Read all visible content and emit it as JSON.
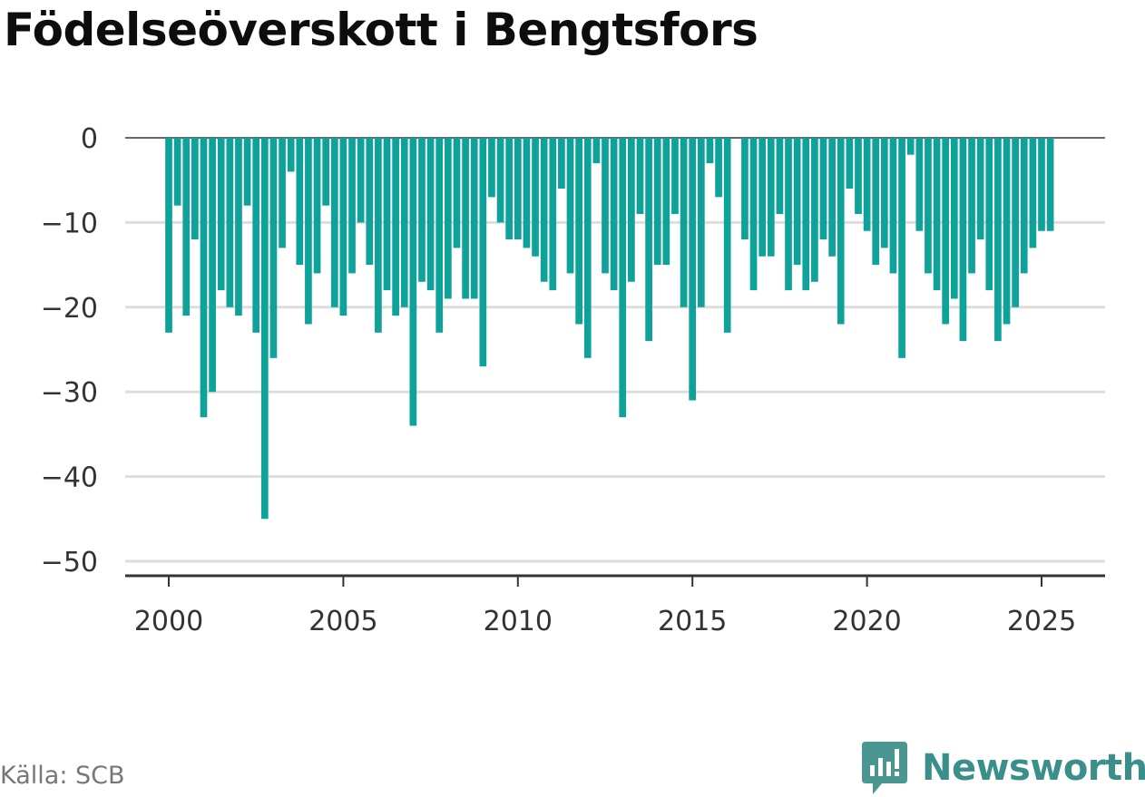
{
  "title": "Födelseöverskott i Bengtsfors",
  "source": "Källa: SCB",
  "brand": {
    "name": "Newsworthy",
    "logo_icon": "newsworthy-logo-icon"
  },
  "colors": {
    "bar": "#0fa29a",
    "brand": "#3b8f8a",
    "grid": "#dddddd",
    "axis": "#333333"
  },
  "chart_data": {
    "type": "bar",
    "title": "Födelseöverskott i Bengtsfors",
    "xlabel": "",
    "ylabel": "",
    "frequency": "quarterly",
    "start": "2000-Q1",
    "x_ticks": [
      "2000",
      "2005",
      "2010",
      "2015",
      "2020",
      "2025"
    ],
    "y_ticks": [
      0,
      -10,
      -20,
      -30,
      -40,
      -50
    ],
    "ylim": [
      -50,
      0
    ],
    "grid": true,
    "legend": "none",
    "values": [
      -23,
      -8,
      -21,
      -12,
      -33,
      -30,
      -18,
      -20,
      -21,
      -8,
      -23,
      -45,
      -26,
      -13,
      -4,
      -15,
      -22,
      -16,
      -8,
      -20,
      -21,
      -16,
      -10,
      -15,
      -23,
      -18,
      -21,
      -20,
      -34,
      -17,
      -18,
      -23,
      -19,
      -13,
      -19,
      -19,
      -27,
      -7,
      -10,
      -12,
      -12,
      -13,
      -14,
      -17,
      -18,
      -6,
      -16,
      -22,
      -26,
      -3,
      -16,
      -18,
      -33,
      -17,
      -9,
      -24,
      -15,
      -15,
      -9,
      -20,
      -31,
      -20,
      -3,
      -7,
      -23,
      0,
      -12,
      -18,
      -14,
      -14,
      -9,
      -18,
      -15,
      -18,
      -17,
      -12,
      -14,
      -22,
      -6,
      -9,
      -11,
      -15,
      -13,
      -16,
      -26,
      -2,
      -11,
      -16,
      -18,
      -22,
      -19,
      -24,
      -16,
      -12,
      -18,
      -24,
      -22,
      -20,
      -16,
      -13,
      -11,
      -11
    ]
  }
}
